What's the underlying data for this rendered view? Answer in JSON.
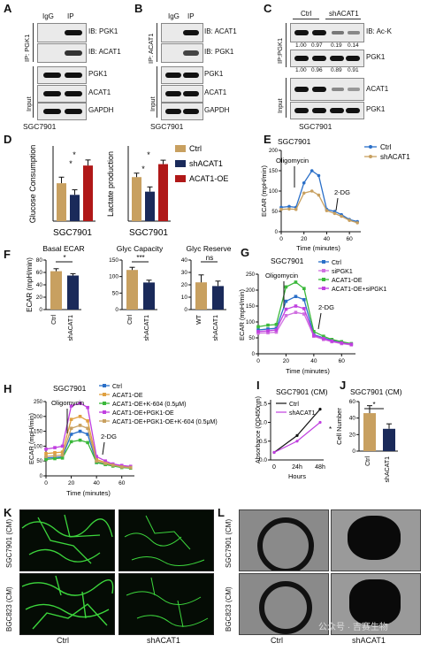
{
  "panel_letters": [
    "A",
    "B",
    "C",
    "D",
    "E",
    "F",
    "G",
    "H",
    "I",
    "J",
    "K",
    "L"
  ],
  "A": {
    "cols": [
      "IgG",
      "IP"
    ],
    "ip_side": "IP: PGK1",
    "input_side": "Input",
    "blots": [
      "IB: PGK1",
      "IB: ACAT1",
      "PGK1",
      "ACAT1",
      "GAPDH"
    ],
    "cell": "SGC7901"
  },
  "B": {
    "cols": [
      "IgG",
      "IP"
    ],
    "ip_side": "IP: ACAT1",
    "input_side": "Input",
    "blots": [
      "IB: ACAT1",
      "IB: PGK1",
      "PGK1",
      "ACAT1",
      "GAPDH"
    ],
    "cell": "SGC7901"
  },
  "C": {
    "groups": [
      "Ctrl",
      "shACAT1"
    ],
    "ip_side": "IP:PGK1",
    "input_side": "Input",
    "blots": [
      "IB: Ac-K",
      "PGK1",
      "ACAT1",
      "PGK1"
    ],
    "quant1": [
      "1.00",
      "0.97",
      "0.19",
      "0.14"
    ],
    "quant2": [
      "1.00",
      "0.96",
      "0.89",
      "0.91"
    ],
    "cell": "SGC7901"
  },
  "chart_data": [
    {
      "panel": "D-left",
      "type": "bar",
      "ylabel": "Glucose Consumption",
      "xlabel": "SGC7901",
      "categories": [
        "Ctrl",
        "shACAT1",
        "ACAT1-OE"
      ],
      "values": [
        7.5,
        5.2,
        11
      ],
      "errors": [
        1.2,
        1,
        1.1
      ],
      "ylim": [
        0,
        14
      ],
      "sig": [
        "*",
        "*"
      ]
    },
    {
      "panel": "D-right",
      "type": "bar",
      "ylabel": "Lactate production",
      "xlabel": "SGC7901",
      "categories": [
        "Ctrl",
        "shACAT1",
        "ACAT1-OE"
      ],
      "values": [
        11.2,
        7.5,
        14.5
      ],
      "errors": [
        1,
        1.2,
        1
      ],
      "ylim": [
        0,
        18
      ],
      "sig": [
        "*",
        "*"
      ],
      "legend": [
        "Ctrl",
        "shACAT1",
        "ACAT1-OE"
      ]
    },
    {
      "panel": "E",
      "type": "line",
      "title": "SGC7901",
      "xlabel": "Time (minutes)",
      "ylabel": "ECAR (mpH/min)",
      "x": [
        0,
        7,
        13,
        20,
        27,
        33,
        40,
        47,
        53,
        60,
        67
      ],
      "xticks": [
        0,
        20,
        40,
        60
      ],
      "yticks": [
        0,
        50,
        100,
        150,
        200
      ],
      "ylim": [
        0,
        200
      ],
      "series": [
        {
          "name": "Ctrl",
          "values": [
            60,
            62,
            60,
            120,
            150,
            138,
            55,
            50,
            42,
            30,
            25
          ]
        },
        {
          "name": "shACAT1",
          "values": [
            55,
            56,
            55,
            95,
            100,
            90,
            52,
            45,
            38,
            28,
            22
          ]
        }
      ],
      "annotations": [
        "Oligomycin",
        "2-DG"
      ]
    },
    {
      "panel": "F-basal",
      "type": "bar",
      "title": "Basal ECAR",
      "ylabel": "ECAR (mpH/min)",
      "categories": [
        "Ctrl",
        "shACAT1"
      ],
      "values": [
        62,
        55
      ],
      "errors": [
        4,
        3
      ],
      "ylim": [
        0,
        80
      ],
      "yticks": [
        0,
        20,
        40,
        60,
        80
      ],
      "sig": "*"
    },
    {
      "panel": "F-capacity",
      "type": "bar",
      "title": "Glyc Capacity",
      "categories": [
        "Ctrl",
        "shACAT1"
      ],
      "values": [
        120,
        82
      ],
      "errors": [
        8,
        7
      ],
      "ylim": [
        0,
        150
      ],
      "yticks": [
        0,
        50,
        100,
        150
      ],
      "sig": "***"
    },
    {
      "panel": "F-reserve",
      "type": "bar",
      "title": "Glyc Reserve",
      "categories": [
        "WT",
        "shACAT1"
      ],
      "values": [
        22,
        19
      ],
      "errors": [
        6,
        4
      ],
      "ylim": [
        0,
        40
      ],
      "yticks": [
        0,
        10,
        20,
        30,
        40
      ],
      "sig": "ns"
    },
    {
      "panel": "G",
      "type": "line",
      "title": "SGC7901",
      "xlabel": "Time (minutes)",
      "ylabel": "ECAR (mpH/min)",
      "x": [
        0,
        7,
        13,
        20,
        27,
        33,
        40,
        47,
        53,
        60,
        67
      ],
      "xticks": [
        0,
        20,
        40,
        60
      ],
      "yticks": [
        0,
        50,
        100,
        150,
        200,
        250
      ],
      "ylim": [
        0,
        250
      ],
      "series": [
        {
          "name": "Ctrl",
          "values": [
            75,
            78,
            80,
            165,
            180,
            170,
            60,
            50,
            42,
            35,
            30
          ]
        },
        {
          "name": "siPGK1",
          "values": [
            65,
            66,
            68,
            120,
            130,
            125,
            55,
            45,
            38,
            32,
            28
          ]
        },
        {
          "name": "ACAT1-OE",
          "values": [
            85,
            90,
            92,
            210,
            225,
            205,
            70,
            55,
            45,
            38,
            32
          ]
        },
        {
          "name": "ACAT1-OE+siPGK1",
          "values": [
            70,
            72,
            75,
            140,
            150,
            142,
            58,
            48,
            40,
            34,
            30
          ]
        }
      ],
      "annotations": [
        "Oligomycin",
        "2-DG"
      ]
    },
    {
      "panel": "H",
      "type": "line",
      "title": "SGC7901",
      "xlabel": "Time (minutes)",
      "ylabel": "ECAR (mpH/min)",
      "x": [
        0,
        7,
        13,
        20,
        27,
        33,
        40,
        47,
        53,
        60,
        67
      ],
      "xticks": [
        0,
        20,
        40,
        60
      ],
      "yticks": [
        0,
        50,
        100,
        150,
        200,
        250
      ],
      "ylim": [
        0,
        250
      ],
      "series": [
        {
          "name": "Ctrl",
          "values": [
            60,
            62,
            64,
            140,
            150,
            140,
            45,
            40,
            35,
            30,
            28
          ]
        },
        {
          "name": "ACAT1-OE",
          "values": [
            75,
            78,
            80,
            190,
            200,
            185,
            55,
            45,
            38,
            32,
            30
          ]
        },
        {
          "name": "ACAT1-OE+K-604 (0.5μM)",
          "values": [
            55,
            58,
            60,
            115,
            120,
            112,
            45,
            38,
            33,
            28,
            26
          ]
        },
        {
          "name": "ACAT1-OE+PGK1-OE",
          "values": [
            90,
            95,
            100,
            235,
            245,
            230,
            65,
            50,
            40,
            35,
            32
          ]
        },
        {
          "name": "ACAT1-OE+PGK1-OE+K-604 (0.5μM)",
          "values": [
            65,
            68,
            70,
            160,
            170,
            160,
            50,
            42,
            36,
            30,
            28
          ]
        }
      ],
      "annotations": [
        "Oligomycin",
        "2-DG"
      ]
    },
    {
      "panel": "I",
      "type": "line",
      "title": "SGC7901 (CM)",
      "xlabel": "Hours",
      "ylabel": "Absorbance (OD450nm)",
      "categories": [
        "0",
        "24h",
        "48h"
      ],
      "ylim": [
        0,
        1.6
      ],
      "yticks": [
        "0.0",
        "0.5",
        "1.0",
        "1.5"
      ],
      "series": [
        {
          "name": "Ctrl",
          "values": [
            0.2,
            0.65,
            1.35
          ]
        },
        {
          "name": "shACAT1",
          "values": [
            0.2,
            0.5,
            1.0
          ]
        }
      ],
      "sig": "*"
    },
    {
      "panel": "J",
      "type": "bar",
      "title": "SGC7901 (CM)",
      "ylabel": "Cell Number",
      "categories": [
        "Ctrl",
        "shACAT1"
      ],
      "values": [
        46,
        27
      ],
      "errors": [
        9,
        6
      ],
      "ylim": [
        0,
        60
      ],
      "yticks": [
        0,
        20,
        40,
        60
      ],
      "sig": "*"
    }
  ],
  "K": {
    "rows": [
      "SGC7901 (CM)",
      "BGC823 (CM)"
    ],
    "cols": [
      "Ctrl",
      "shACAT1"
    ]
  },
  "L": {
    "rows": [
      "SGC7901 (CM)",
      "BGC823 (CM)"
    ],
    "cols": [
      "Ctrl",
      "shACAT1"
    ],
    "watermark": "公众号 · 吉赛生物"
  },
  "colors": {
    "ctrl": "#c8a060",
    "sh": "#1a2a5a",
    "oe": "#b01818",
    "blue": "#2a6fc8",
    "orange": "#e0a040",
    "green": "#3ab83a",
    "purple": "#c040e0",
    "pink": "#d070e0",
    "black": "#111111"
  }
}
